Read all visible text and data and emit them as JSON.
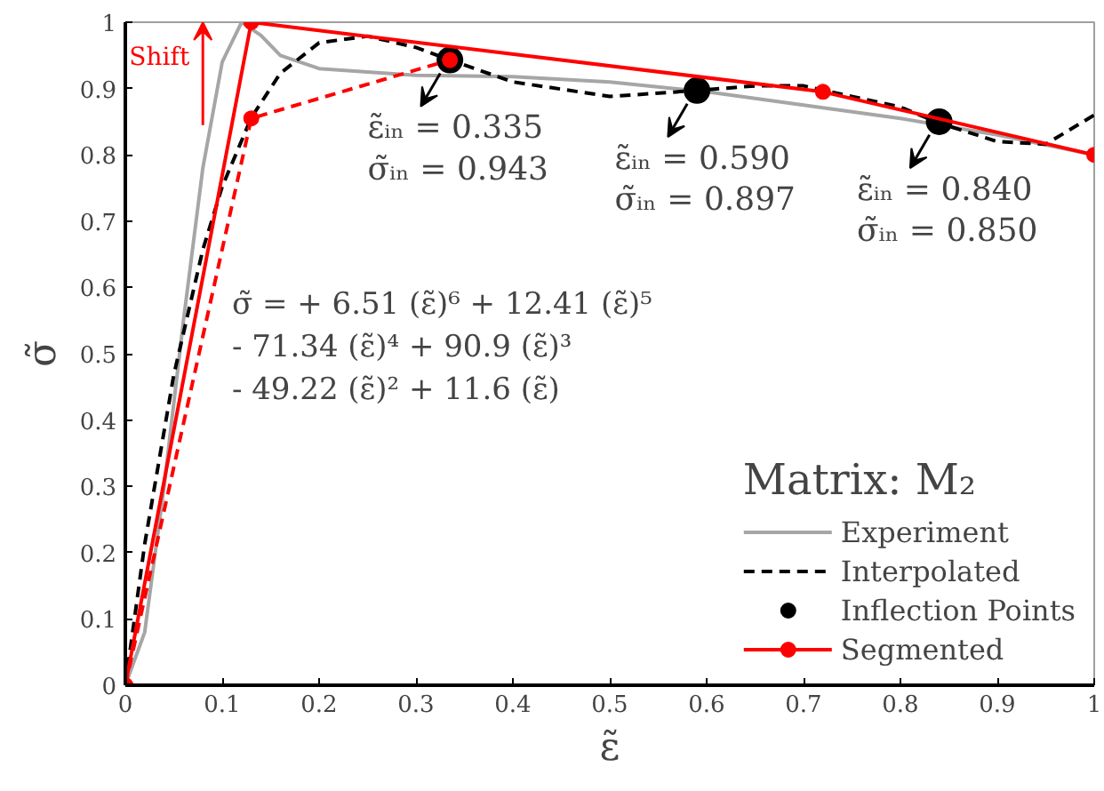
{
  "chart_data": {
    "type": "line",
    "xlabel": "ε̃",
    "ylabel": "σ̃",
    "legend_title": "Matrix: M₂",
    "xlim": [
      0,
      1
    ],
    "ylim": [
      0,
      1
    ],
    "xticks": [
      0,
      0.1,
      0.2,
      0.3,
      0.4,
      0.5,
      0.6,
      0.7,
      0.8,
      0.9,
      1
    ],
    "yticks": [
      0,
      0.1,
      0.2,
      0.3,
      0.4,
      0.5,
      0.6,
      0.7,
      0.8,
      0.9,
      1
    ],
    "grid": false,
    "legend": "bottom right",
    "series": [
      {
        "name": "Experiment",
        "color": "#a6a6a6",
        "line_style": "solid",
        "marker": "none",
        "x": [
          0,
          0.02,
          0.04,
          0.06,
          0.08,
          0.1,
          0.12,
          0.14,
          0.16,
          0.2,
          0.3,
          0.4,
          0.5,
          0.6,
          0.7,
          0.8,
          0.9,
          1.0
        ],
        "values": [
          0,
          0.08,
          0.3,
          0.55,
          0.78,
          0.94,
          1.0,
          0.98,
          0.95,
          0.93,
          0.92,
          0.918,
          0.91,
          0.895,
          0.875,
          0.855,
          0.83,
          0.8
        ]
      },
      {
        "name": "Interpolated",
        "color": "#000000",
        "line_style": "dashed",
        "marker": "none",
        "x": [
          0,
          0.02,
          0.05,
          0.08,
          0.1,
          0.13,
          0.16,
          0.2,
          0.25,
          0.3,
          0.335,
          0.4,
          0.5,
          0.59,
          0.65,
          0.7,
          0.8,
          0.84,
          0.9,
          0.95,
          1.0
        ],
        "values": [
          0,
          0.213,
          0.468,
          0.657,
          0.752,
          0.856,
          0.923,
          0.969,
          0.979,
          0.962,
          0.943,
          0.91,
          0.888,
          0.897,
          0.904,
          0.904,
          0.872,
          0.848,
          0.82,
          0.816,
          0.86
        ]
      },
      {
        "name": "Inflection Points",
        "type": "scatter",
        "color": "#000000",
        "marker": "circle",
        "x": [
          0.335,
          0.59,
          0.84
        ],
        "values": [
          0.943,
          0.897,
          0.85
        ]
      },
      {
        "name": "Segmented",
        "color": "#ff0000",
        "line_style": "solid",
        "marker": "circle",
        "x": [
          0,
          0.13,
          0.72,
          1.0
        ],
        "values": [
          0,
          1.0,
          0.895,
          0.8
        ]
      },
      {
        "color": "#ff0000",
        "line_style": "dashed",
        "marker": "circle",
        "x": [
          0,
          0.13,
          0.335
        ],
        "values": [
          0,
          0.855,
          0.943
        ]
      }
    ],
    "annotations": [
      {
        "text": "ε̃ᵢₙ = 0.335\nσ̃ᵢₙ = 0.943",
        "x": 0.335,
        "y": 0.943
      },
      {
        "text": "ε̃ᵢₙ = 0.590\nσ̃ᵢₙ = 0.897",
        "x": 0.59,
        "y": 0.897
      },
      {
        "text": "ε̃ᵢₙ = 0.840\nσ̃ᵢₙ = 0.850",
        "x": 0.84,
        "y": 0.85
      },
      "Shift",
      "σ̃ = + 6.51 (ε̃)⁶ + 12.41 (ε̃)⁵\n-  71.34 (ε̃)⁴ + 90.9 (ε̃)³\n- 49.22 (ε̃)² + 11.6 (ε̃)"
    ]
  }
}
